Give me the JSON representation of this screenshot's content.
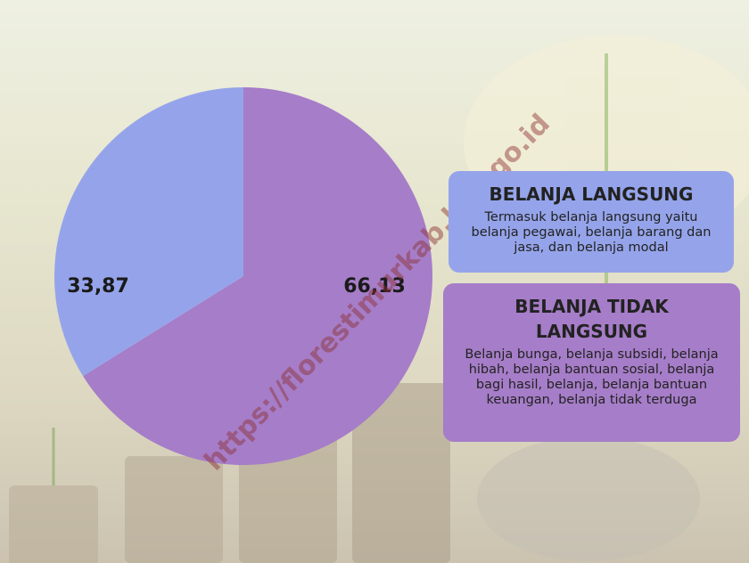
{
  "chart_data": {
    "type": "pie",
    "categories": [
      "BELANJA TIDAK LANGSUNG",
      "BELANJA LANGSUNG"
    ],
    "descriptions": [
      "Belanja bunga, belanja subsidi, belanja hibah, belanja bantuan sosial, belanja bagi hasil, belanja, belanja bantuan keuangan, belanja tidak terduga",
      "Termasuk belanja langsung yaitu belanja pegawai, belanja barang dan jasa, dan belanja modal"
    ],
    "values": [
      66.13,
      33.87
    ],
    "value_labels": [
      "66,13",
      "33,87"
    ],
    "colors": [
      "#a67dc8",
      "#95a4ea"
    ],
    "watermark": "https://florestimurkab.bps.go.id"
  }
}
